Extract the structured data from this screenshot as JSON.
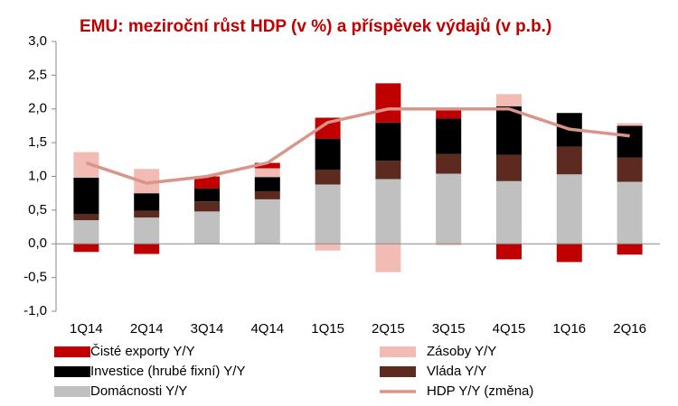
{
  "chart_data": {
    "type": "bar",
    "stacked": true,
    "title": "EMU: meziroční růst HDP (v %) a příspěvek výdajů (v p.b.)",
    "categories": [
      "1Q14",
      "2Q14",
      "3Q14",
      "4Q14",
      "1Q15",
      "2Q15",
      "3Q15",
      "4Q15",
      "1Q16",
      "2Q16"
    ],
    "ylim": [
      -1.0,
      3.0
    ],
    "yticks": [
      {
        "value": -1.0,
        "label": "-1,0"
      },
      {
        "value": -0.5,
        "label": "-0,5"
      },
      {
        "value": 0.0,
        "label": "0,0"
      },
      {
        "value": 0.5,
        "label": "0,5"
      },
      {
        "value": 1.0,
        "label": "1,0"
      },
      {
        "value": 1.5,
        "label": "1,5"
      },
      {
        "value": 2.0,
        "label": "2,0"
      },
      {
        "value": 2.5,
        "label": "2,5"
      },
      {
        "value": 3.0,
        "label": "3,0"
      }
    ],
    "grid": false,
    "series": [
      {
        "name": "Čisté exporty Y/Y",
        "color": "#c00000",
        "values": [
          -0.12,
          -0.15,
          0.18,
          0.08,
          0.31,
          0.58,
          0.14,
          -0.23,
          -0.27,
          -0.16
        ]
      },
      {
        "name": "Zásoby Y/Y",
        "color": "#f2bcb4",
        "values": [
          0.38,
          0.36,
          0,
          0.13,
          -0.1,
          -0.42,
          -0.02,
          0.18,
          0,
          0.04
        ]
      },
      {
        "name": "Investice (hrubé fixní) Y/Y",
        "color": "#000000",
        "values": [
          0.54,
          0.26,
          0.19,
          0.21,
          0.46,
          0.57,
          0.53,
          0.72,
          0.5,
          0.47
        ]
      },
      {
        "name": "Vláda Y/Y",
        "color": "#5c2a1e",
        "values": [
          0.09,
          0.1,
          0.15,
          0.12,
          0.22,
          0.27,
          0.29,
          0.39,
          0.41,
          0.36
        ]
      },
      {
        "name": "Domácnosti Y/Y",
        "color": "#c0c0c0",
        "values": [
          0.35,
          0.39,
          0.48,
          0.66,
          0.88,
          0.96,
          1.04,
          0.93,
          1.03,
          0.92
        ]
      },
      {
        "name": "HDP Y/Y (změna)",
        "color": "#d9958a",
        "type": "line",
        "values": [
          1.2,
          0.9,
          1.0,
          1.2,
          1.8,
          2.0,
          2.0,
          2.0,
          1.7,
          1.6
        ]
      }
    ]
  }
}
